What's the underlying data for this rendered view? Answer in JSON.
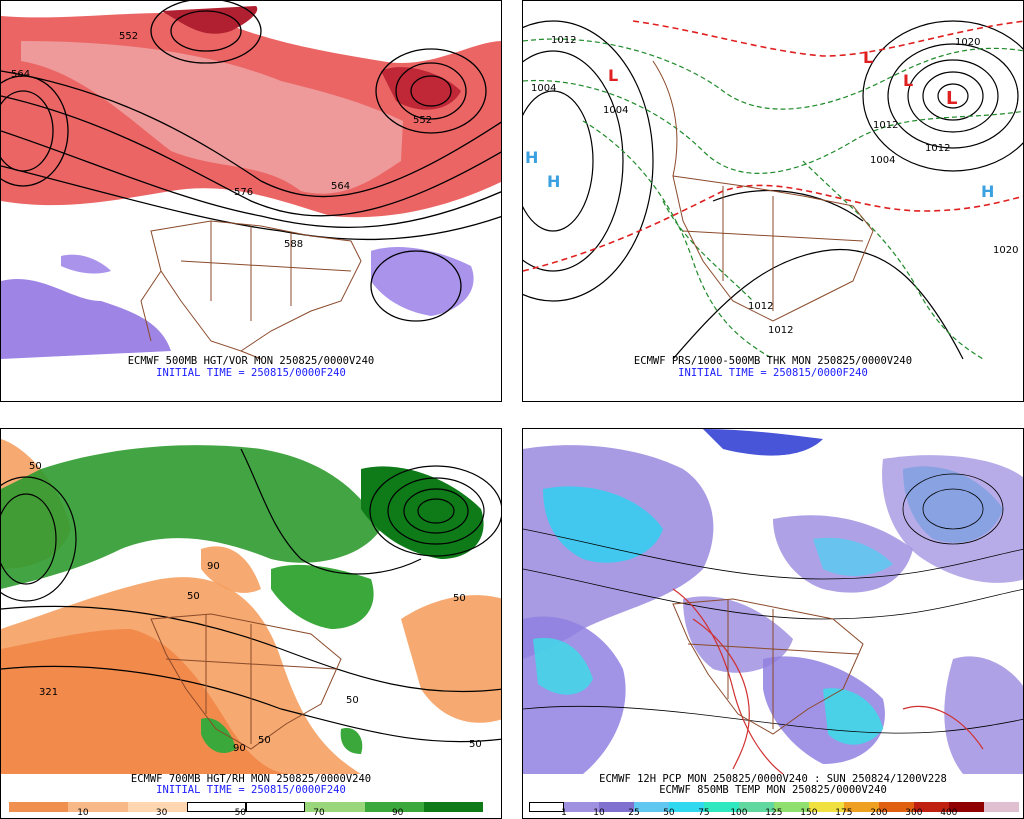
{
  "panels": {
    "top_left": {
      "title": "ECMWF 500MB HGT/VOR MON 250825/0000V240",
      "init": "INITIAL TIME = 250815/0000F240",
      "labels": [
        "552",
        "564",
        "576",
        "588",
        "552",
        "564"
      ]
    },
    "top_right": {
      "title": "ECMWF PRS/1000-500MB THK MON 250825/0000V240",
      "init": "INITIAL TIME = 250815/0000F240",
      "labels": [
        "1012",
        "1004",
        "1004",
        "1020",
        "1012",
        "1004",
        "1012",
        "1020",
        "1012",
        "1012"
      ],
      "lows": [
        "L",
        "L",
        "L",
        "L"
      ],
      "highs": [
        "H",
        "H",
        "H"
      ]
    },
    "bottom_left": {
      "title": "ECMWF 700MB HGT/RH MON 250825/0000V240",
      "init": "INITIAL TIME = 250815/0000F240",
      "labels": [
        "50",
        "90",
        "50",
        "321",
        "50",
        "90",
        "50",
        "50",
        "50"
      ],
      "colorbar": {
        "colors": [
          "#f09050",
          "#f8b888",
          "#ffd6b0",
          "#ffffff",
          "#ffffff",
          "#9ad67a",
          "#3aa83a",
          "#0e7a18"
        ],
        "ticks": [
          "10",
          "30",
          "50",
          "70",
          "90"
        ]
      }
    },
    "bottom_right": {
      "title": "ECMWF 12H PCP MON 250825/0000V240 : SUN 250824/1200V228",
      "subtitle": "ECMWF 850MB TEMP MON 250825/0000V240",
      "colorbar": {
        "colors": [
          "#ffffff",
          "#a090e0",
          "#8070d0",
          "#60c8f0",
          "#30d8f0",
          "#30e8c0",
          "#60d8a0",
          "#90e070",
          "#f0e040",
          "#f0a020",
          "#e06010",
          "#c02010",
          "#900000",
          "#e0c0d0"
        ],
        "ticks": [
          "1",
          "10",
          "25",
          "50",
          "75",
          "100",
          "125",
          "150",
          "175",
          "200",
          "300",
          "400"
        ]
      }
    }
  }
}
